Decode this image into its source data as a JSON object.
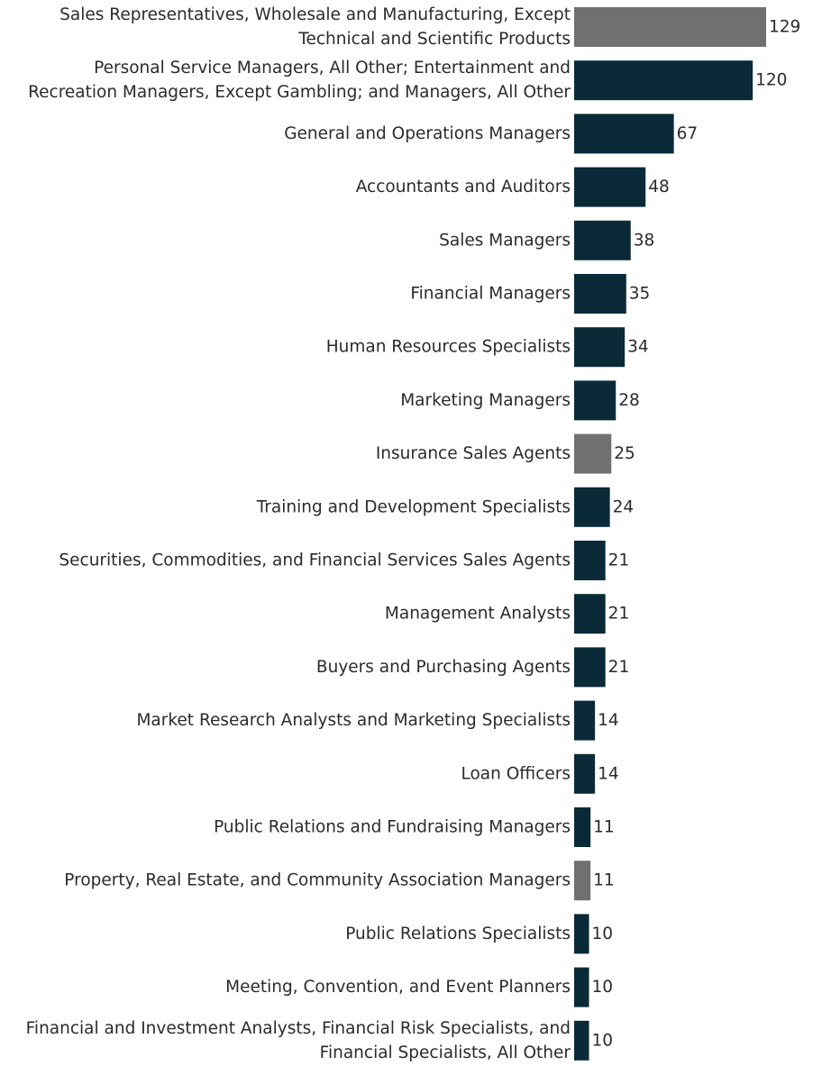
{
  "chart_data": {
    "type": "bar",
    "orientation": "horizontal",
    "grid": false,
    "colors": {
      "primary": "#0a2a38",
      "highlight": "#707070"
    },
    "categories": [
      [
        "Sales Representatives, Wholesale and Manufacturing, Except",
        "Technical and Scientific Products"
      ],
      [
        "Personal Service Managers, All Other; Entertainment and",
        "Recreation Managers, Except Gambling; and Managers, All Other"
      ],
      [
        "General and Operations Managers"
      ],
      [
        "Accountants and Auditors"
      ],
      [
        "Sales Managers"
      ],
      [
        "Financial Managers"
      ],
      [
        "Human Resources Specialists"
      ],
      [
        "Marketing Managers"
      ],
      [
        "Insurance Sales Agents"
      ],
      [
        "Training and Development Specialists"
      ],
      [
        "Securities, Commodities, and Financial Services Sales Agents"
      ],
      [
        "Management Analysts"
      ],
      [
        "Buyers and Purchasing Agents"
      ],
      [
        "Market Research Analysts and Marketing Specialists"
      ],
      [
        "Loan Officers"
      ],
      [
        "Public Relations and Fundraising Managers"
      ],
      [
        "Property, Real Estate, and Community Association Managers"
      ],
      [
        "Public Relations Specialists"
      ],
      [
        "Meeting, Convention, and Event Planners"
      ],
      [
        "Financial and Investment Analysts, Financial Risk Specialists, and",
        "Financial Specialists, All Other"
      ]
    ],
    "values": [
      129,
      120,
      67,
      48,
      38,
      35,
      34,
      28,
      25,
      24,
      21,
      21,
      21,
      14,
      14,
      11,
      11,
      10,
      10,
      10
    ],
    "highlighted": [
      true,
      false,
      false,
      false,
      false,
      false,
      false,
      false,
      true,
      false,
      false,
      false,
      false,
      false,
      false,
      false,
      true,
      false,
      false,
      false
    ],
    "xlim": [
      0,
      129
    ]
  }
}
